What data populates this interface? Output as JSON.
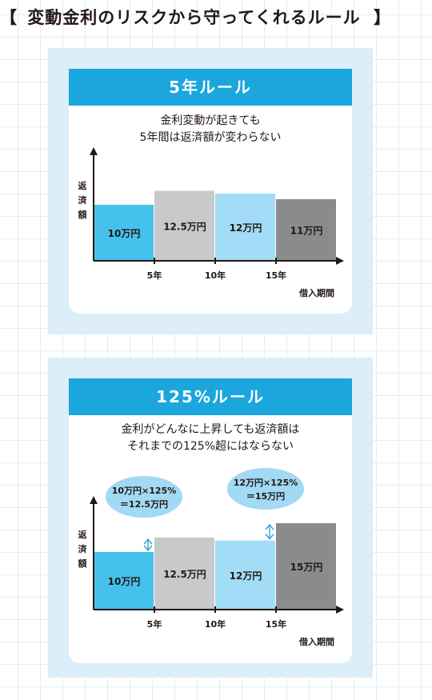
{
  "heading": {
    "bracket_left": "【",
    "title": "変動金利のリスクから守ってくれるルール",
    "bracket_right": "】"
  },
  "colors": {
    "banner": "#1ba6de",
    "panel_bg": "#dbeef9",
    "bar_blue": "#45c2ec",
    "bar_lightgray": "#c8c9ca",
    "bar_lightblue": "#a3dcf6",
    "bar_darkgray": "#8a8b8d",
    "bubble": "#a2d9f4",
    "arrow": "#3aa7d8"
  },
  "panels": [
    {
      "banner": "5年ルール",
      "caption_lines": [
        "金利変動が起きても",
        "5年間は返済額が変わらない"
      ]
    },
    {
      "banner": "125%ルール",
      "caption_lines": [
        "金利がどんなに上昇しても返済額は",
        "それまでの125%超にはならない"
      ]
    }
  ],
  "chart_data": [
    {
      "type": "bar",
      "ylabel": "返済額",
      "xlabel": "借入期間",
      "x_ticks": [
        "5年",
        "10年",
        "15年"
      ],
      "bars": [
        {
          "label": "10万円",
          "value": 10,
          "color": "#45c2ec",
          "text_color": "#231815"
        },
        {
          "label": "12.5万円",
          "value": 12.5,
          "color": "#c8c9ca",
          "text_color": "#231815"
        },
        {
          "label": "12万円",
          "value": 12,
          "color": "#a3dcf6",
          "text_color": "#231815"
        },
        {
          "label": "11万円",
          "value": 11,
          "color": "#8a8b8d",
          "text_color": "#231815"
        }
      ]
    },
    {
      "type": "bar",
      "ylabel": "返済額",
      "xlabel": "借入期間",
      "x_ticks": [
        "5年",
        "10年",
        "15年"
      ],
      "bars": [
        {
          "label": "10万円",
          "value": 10,
          "color": "#45c2ec",
          "text_color": "#231815"
        },
        {
          "label": "12.5万円",
          "value": 12.5,
          "color": "#c8c9ca",
          "text_color": "#231815"
        },
        {
          "label": "12万円",
          "value": 12,
          "color": "#a3dcf6",
          "text_color": "#231815"
        },
        {
          "label": "15万円",
          "value": 15,
          "color": "#8a8b8d",
          "text_color": "#231815"
        }
      ],
      "annotations": [
        {
          "lines": [
            "10万円×125%",
            "＝12.5万円"
          ],
          "from_bar": 0
        },
        {
          "lines": [
            "12万円×125%",
            "＝15万円"
          ],
          "from_bar": 2
        }
      ]
    }
  ]
}
